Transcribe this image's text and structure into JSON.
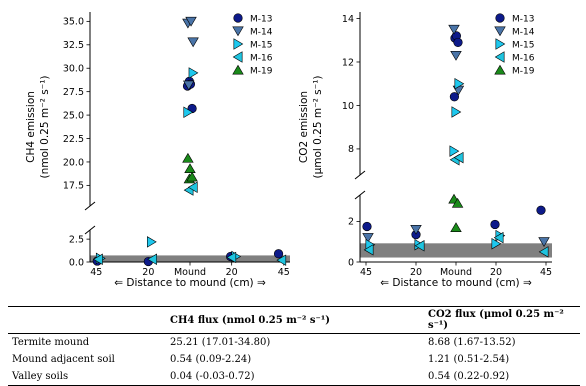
{
  "chart_data": [
    {
      "type": "scatter",
      "title": "",
      "ylabel_line1": "CH$_4$ emission",
      "ylabel_display_line1": "CH4 emission",
      "ylabel_line2": "(nmol 0.25 m⁻² s⁻¹)",
      "xlabel": "⇐  Distance to mound (cm)  ⇒",
      "xticks": [
        "45",
        "20",
        "Mound",
        "20",
        "45"
      ],
      "yticks_upper": [
        "17.5",
        "20.0",
        "22.5",
        "25.0",
        "27.5",
        "30.0",
        "32.5",
        "35.0"
      ],
      "yticks_lower": [
        "0.0",
        "2.5"
      ],
      "ylim_upper": [
        15.3,
        36.0
      ],
      "ylim_lower": [
        0,
        3.5
      ],
      "broken_axis": true,
      "band": {
        "from": 0.0,
        "to": 0.72,
        "color": "#808080"
      },
      "legend_position": "top-right",
      "series": [
        {
          "name": "M-13",
          "marker": "circle",
          "points": [
            [
              -44.5,
              0.1
            ],
            [
              -20,
              0.05
            ],
            [
              -1.2,
              28.1
            ],
            [
              -0.3,
              28.6
            ],
            [
              0.2,
              28.3
            ],
            [
              1,
              25.7
            ],
            [
              19.5,
              0.6
            ],
            [
              42.5,
              0.9
            ]
          ]
        },
        {
          "name": "M-14",
          "marker": "triangle-down",
          "points": [
            [
              -1,
              34.8
            ],
            [
              0.5,
              35.0
            ],
            [
              1.5,
              32.8
            ],
            [
              -0.6,
              28.2
            ]
          ]
        },
        {
          "name": "M-15",
          "marker": "triangle-right",
          "points": [
            [
              -43,
              0.4
            ],
            [
              -18.5,
              2.2
            ],
            [
              -1,
              25.3
            ],
            [
              1.5,
              29.5
            ],
            [
              22,
              0.6
            ]
          ]
        },
        {
          "name": "M-16",
          "marker": "triangle-left",
          "points": [
            [
              -44,
              0.3
            ],
            [
              -18,
              0.3
            ],
            [
              -0.5,
              17.0
            ],
            [
              1.5,
              17.3
            ],
            [
              20,
              0.5
            ],
            [
              44,
              0.2
            ]
          ]
        },
        {
          "name": "M-19",
          "marker": "triangle-up",
          "points": [
            [
              -1,
              20.4
            ],
            [
              0,
              19.3
            ],
            [
              -0.3,
              18.2
            ],
            [
              1,
              18.4
            ]
          ]
        }
      ]
    },
    {
      "type": "scatter",
      "title": "",
      "ylabel_line1": "CO$_2$ emission",
      "ylabel_display_line1": "CO2 emission",
      "ylabel_line2": "(μmol 0.25 m⁻² s⁻¹)",
      "xlabel": "⇐  Distance to mound (cm)  ⇒",
      "xticks": [
        "45",
        "20",
        "Mound",
        "20",
        "45"
      ],
      "yticks_upper": [
        "8",
        "10",
        "12",
        "14"
      ],
      "yticks_lower": [
        "0",
        "2"
      ],
      "ylim_upper": [
        6.8,
        14.3
      ],
      "ylim_lower": [
        0,
        3.3
      ],
      "broken_axis": true,
      "band": {
        "from": 0.22,
        "to": 0.92,
        "color": "#808080"
      },
      "legend_position": "top-right",
      "series": [
        {
          "name": "M-13",
          "marker": "circle",
          "points": [
            [
              -44.5,
              1.75
            ],
            [
              -20,
              1.35
            ],
            [
              -0.8,
              10.4
            ],
            [
              -0.5,
              13.1
            ],
            [
              0.2,
              13.2
            ],
            [
              1,
              12.9
            ],
            [
              19.5,
              1.85
            ],
            [
              42.5,
              2.55
            ]
          ]
        },
        {
          "name": "M-14",
          "marker": "triangle-down",
          "points": [
            [
              -44,
              1.2
            ],
            [
              -20,
              1.6
            ],
            [
              -1,
              13.5
            ],
            [
              0,
              12.3
            ],
            [
              1.2,
              10.7
            ],
            [
              44,
              1.0
            ]
          ]
        },
        {
          "name": "M-15",
          "marker": "triangle-right",
          "points": [
            [
              -43,
              0.85
            ],
            [
              -18.5,
              0.85
            ],
            [
              -1,
              7.9
            ],
            [
              0,
              9.7
            ],
            [
              1.5,
              11.0
            ],
            [
              20,
              0.9
            ],
            [
              22,
              1.3
            ]
          ]
        },
        {
          "name": "M-16",
          "marker": "triangle-left",
          "points": [
            [
              -43.5,
              0.6
            ],
            [
              -18,
              0.8
            ],
            [
              -0.5,
              7.5
            ],
            [
              1.5,
              7.6
            ],
            [
              21.5,
              1.2
            ],
            [
              44,
              0.5
            ]
          ]
        },
        {
          "name": "M-19",
          "marker": "triangle-up",
          "points": [
            [
              -1,
              3.1
            ],
            [
              0,
              1.7
            ],
            [
              0.8,
              2.9
            ]
          ]
        }
      ]
    }
  ],
  "markers": {
    "M-13": {
      "fill": "#0d1a8a",
      "stroke": "#000000"
    },
    "M-14": {
      "fill": "#4a74a8",
      "stroke": "#000000"
    },
    "M-15": {
      "fill": "#1ec8ee",
      "stroke": "#000000"
    },
    "M-16": {
      "fill": "#1fc4df",
      "stroke": "#000000"
    },
    "M-19": {
      "fill": "#1a8a1a",
      "stroke": "#000000"
    }
  },
  "table": {
    "header_col1": "",
    "header_col2": "CH$_4$ flux (nmol 0.25 m$^{-2}$ s$^{-1}$)",
    "header_col2_display": "CH4 flux (nmol 0.25 m⁻² s⁻¹)",
    "header_col3": "CO$_2$ flux ($\\mu$mol 0.25 m$^{-2}$ s$^{-1}$)",
    "header_col3_display": "CO2 flux (μmol 0.25 m⁻² s⁻¹)",
    "rows": [
      {
        "label": "Termite mound",
        "ch4": "25.21 (17.01-34.80)",
        "co2": "8.68 (1.67-13.52)"
      },
      {
        "label": "Mound adjacent soil",
        "ch4": "0.54 (0.09-2.24)",
        "co2": "1.21 (0.51-2.54)"
      },
      {
        "label": "Valley soils",
        "ch4": "0.04 (-0.03-0.72)",
        "co2": "0.54 (0.22-0.92)"
      }
    ]
  }
}
